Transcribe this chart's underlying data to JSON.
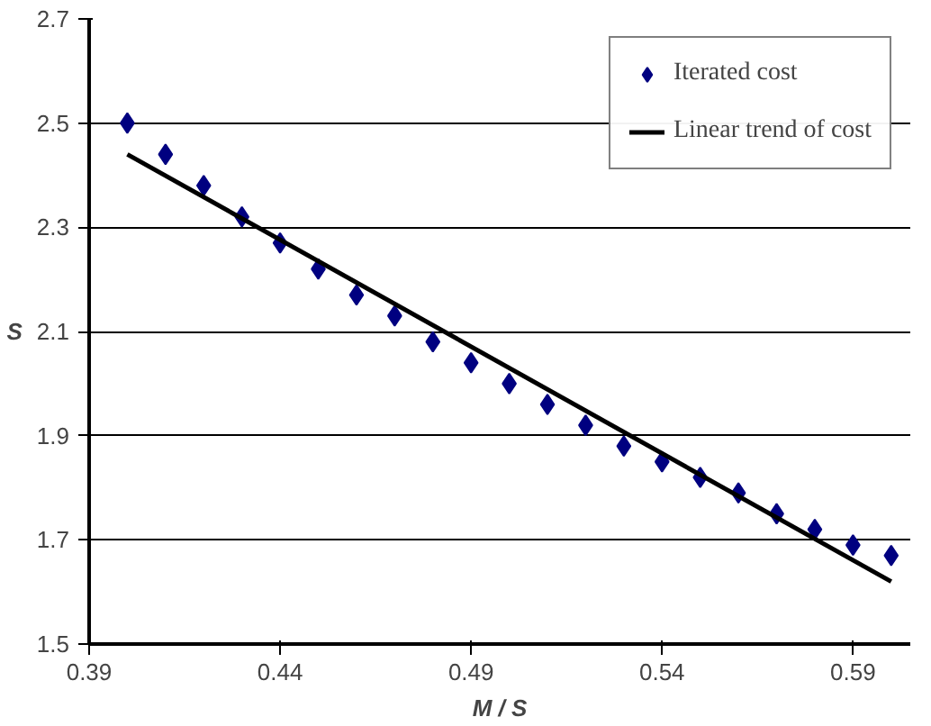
{
  "chart_data": {
    "type": "scatter",
    "xlabel": "M / S",
    "ylabel": "S",
    "xlim": [
      0.39,
      0.605
    ],
    "xticks": [
      0.39,
      0.44,
      0.49,
      0.54,
      0.59
    ],
    "ylim": [
      1.5,
      2.7
    ],
    "yticks": [
      1.5,
      1.7,
      1.9,
      2.1,
      2.3,
      2.5,
      2.7
    ],
    "grid": "y",
    "legend": "top right",
    "series": [
      {
        "name": "Iterated cost",
        "marker": "diamond",
        "color": "#000080",
        "x": [
          0.4,
          0.41,
          0.42,
          0.43,
          0.44,
          0.45,
          0.46,
          0.47,
          0.48,
          0.49,
          0.5,
          0.51,
          0.52,
          0.53,
          0.54,
          0.55,
          0.56,
          0.57,
          0.58,
          0.59,
          0.6
        ],
        "values": [
          2.5,
          2.44,
          2.38,
          2.32,
          2.27,
          2.22,
          2.17,
          2.13,
          2.08,
          2.04,
          2.0,
          1.96,
          1.92,
          1.88,
          1.85,
          1.82,
          1.79,
          1.75,
          1.72,
          1.69,
          1.67
        ]
      },
      {
        "name": "Linear trend of cost",
        "type": "line",
        "line_style": "solid",
        "color": "#000000",
        "x": [
          0.4,
          0.6
        ],
        "values": [
          2.44,
          1.62
        ]
      }
    ]
  }
}
